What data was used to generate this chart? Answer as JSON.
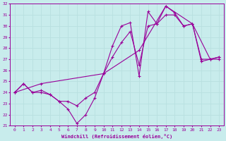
{
  "xlabel": "Windchill (Refroidissement éolien,°C)",
  "bg_color": "#c8ecec",
  "line_color": "#990099",
  "grid_color": "#aadddd",
  "xlim": [
    -0.5,
    23.5
  ],
  "ylim": [
    21,
    32
  ],
  "yticks": [
    21,
    22,
    23,
    24,
    25,
    26,
    27,
    28,
    29,
    30,
    31,
    32
  ],
  "xticks": [
    0,
    1,
    2,
    3,
    4,
    5,
    6,
    7,
    8,
    9,
    10,
    11,
    12,
    13,
    14,
    15,
    16,
    17,
    18,
    19,
    20,
    21,
    22,
    23
  ],
  "line1_x": [
    0,
    1,
    2,
    3,
    4,
    5,
    6,
    7,
    8,
    9,
    10,
    11,
    12,
    13,
    14,
    15,
    16,
    17,
    18,
    19,
    20,
    21,
    22,
    23
  ],
  "line1_y": [
    24.0,
    24.8,
    24.0,
    24.0,
    23.8,
    23.2,
    22.5,
    21.2,
    22.0,
    23.5,
    25.7,
    28.2,
    30.0,
    30.3,
    25.5,
    31.3,
    30.2,
    31.8,
    31.2,
    30.0,
    30.2,
    27.0,
    27.0,
    27.2
  ],
  "line2_x": [
    0,
    1,
    2,
    3,
    4,
    5,
    6,
    7,
    8,
    9,
    10,
    11,
    12,
    13,
    14,
    15,
    16,
    17,
    18,
    19,
    20,
    21,
    22,
    23
  ],
  "line2_y": [
    24.0,
    24.8,
    24.0,
    24.2,
    23.8,
    23.2,
    23.2,
    22.8,
    23.5,
    24.0,
    25.7,
    27.2,
    28.5,
    29.5,
    26.5,
    30.0,
    30.2,
    31.0,
    31.0,
    30.0,
    30.2,
    26.8,
    27.0,
    27.0
  ],
  "line3_x": [
    0,
    3,
    10,
    14,
    17,
    20,
    22,
    23
  ],
  "line3_y": [
    24.0,
    24.8,
    25.7,
    27.8,
    31.8,
    30.2,
    27.0,
    27.2
  ]
}
